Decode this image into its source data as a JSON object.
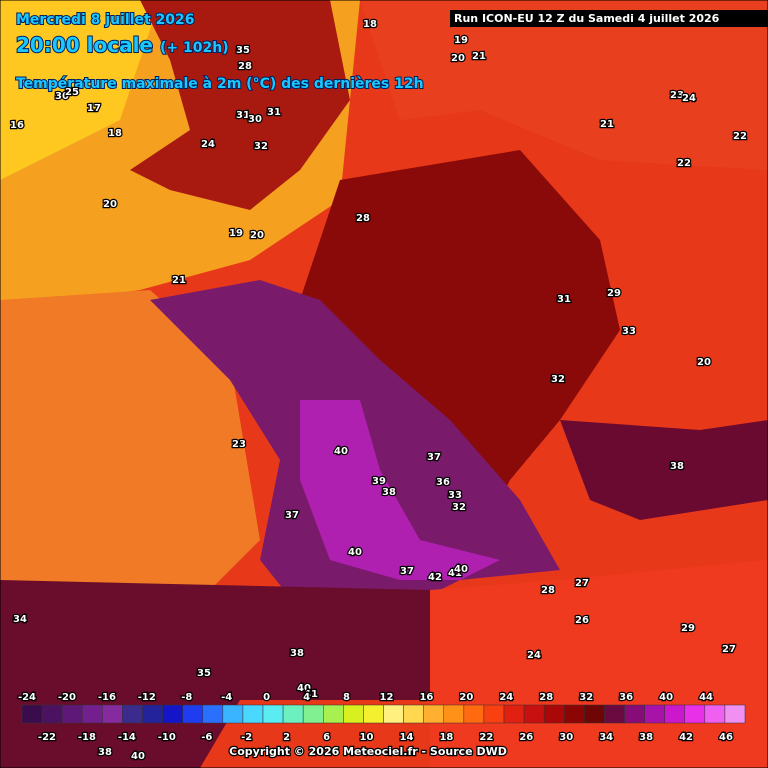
{
  "header": {
    "date": "Mercredi 8 juillet 2026",
    "time": "20:00 locale",
    "lead": "(+ 102h)",
    "title": "Température maximale à 2m (°C) des dernières 12h",
    "run": "Run ICON-EU 12 Z du Samedi 4 juillet 2026"
  },
  "map_labels": [
    18,
    19,
    21,
    20,
    35,
    28,
    30,
    25,
    17,
    16,
    18,
    31,
    30,
    31,
    32,
    24,
    23,
    24,
    21,
    22,
    22,
    20,
    28,
    19,
    20,
    21,
    31,
    29,
    33,
    20,
    32,
    23,
    40,
    37,
    38,
    39,
    38,
    36,
    33,
    32,
    37,
    40,
    37,
    42,
    41,
    40,
    27,
    28,
    26,
    34,
    29,
    27,
    24,
    38,
    35,
    40,
    41,
    38,
    40
  ],
  "colorbar": {
    "top_labels": [
      -24,
      -20,
      -16,
      -12,
      -8,
      -4,
      0,
      4,
      8,
      12,
      16,
      20,
      24,
      28,
      32,
      36,
      40,
      44
    ],
    "bottom_labels": [
      -22,
      -18,
      -14,
      -10,
      -6,
      -2,
      2,
      6,
      10,
      14,
      18,
      22,
      26,
      30,
      34,
      38,
      42,
      46
    ],
    "colors": [
      "#3a0c4c",
      "#4b1262",
      "#5e1877",
      "#73208e",
      "#862aa0",
      "#3a2b8c",
      "#23239c",
      "#1414c8",
      "#1e3cf0",
      "#2a70ff",
      "#3ab4ff",
      "#4ad8ff",
      "#5aecf0",
      "#6cf0c0",
      "#80f090",
      "#a8f050",
      "#d8f020",
      "#f4f030",
      "#fff080",
      "#ffd850",
      "#ffb030",
      "#ff9018",
      "#ff6a10",
      "#f84010",
      "#e02010",
      "#c81010",
      "#aa0808",
      "#8c0404",
      "#6e0606",
      "#6a0a40",
      "#880c78",
      "#a812a8",
      "#cc18cc",
      "#e830e8",
      "#f060f0",
      "#f090f0"
    ]
  },
  "footer": {
    "copyright": "Copyright © 2026 Meteociel.fr - Source DWD"
  }
}
